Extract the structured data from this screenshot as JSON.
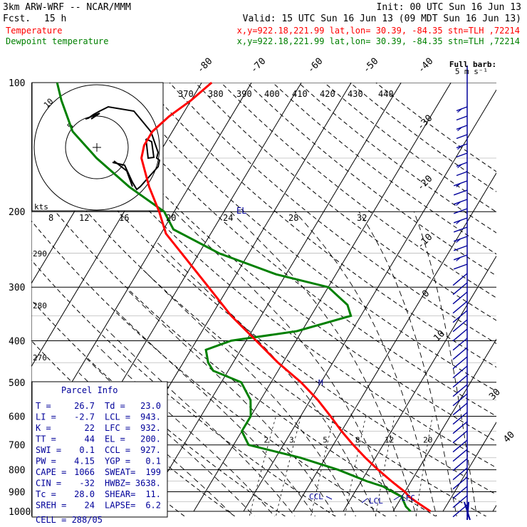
{
  "header": {
    "model": "3km ARW-WRF -- NCAR/MMM",
    "init": "Init: 00 UTC Sun 16 Jun 13",
    "fcst_label": "Fcst.",
    "fcst_value": "15 h",
    "valid": "Valid: 15 UTC Sun 16 Jun 13 (09 MDT Sun 16 Jun 13)",
    "temp_label": "Temperature",
    "temp_info": "x,y=922.18,221.99   lat,lon= 30.39, -84.35  stn=TLH ,72214",
    "dew_label": "Dewpoint temperature",
    "dew_info": "x,y=922.18,221.99   lat,lon= 30.39, -84.35  stn=TLH ,72214"
  },
  "colors": {
    "temperature": "#ff0000",
    "dewpoint": "#008000",
    "background_lines": "#000000",
    "wind_barbs": "#00009a",
    "el_label": "#00009a"
  },
  "barb_legend": {
    "title": "Full barb:",
    "value": "5 m s⁻¹"
  },
  "pressure_labels": [
    "100",
    "200",
    "300",
    "400",
    "500",
    "600",
    "700",
    "800",
    "900",
    "1000"
  ],
  "theta_labels": [
    "370",
    "380",
    "390",
    "400",
    "410",
    "420",
    "430",
    "440"
  ],
  "isotherm_labels": [
    "-80",
    "-70",
    "-60",
    "-50",
    "-40",
    "-30",
    "-20",
    "-10",
    "0",
    "10",
    "30",
    "40"
  ],
  "left_theta_labels": [
    "290",
    "280",
    "270"
  ],
  "mixing_ratio_labels": [
    "2",
    "3",
    "5",
    "8",
    "12",
    "20"
  ],
  "hodograph": {
    "units": "kts",
    "ring_labels": [
      "5",
      "10"
    ],
    "speed_labels": [
      "8",
      "12",
      "16",
      "20",
      "24",
      "28",
      "32"
    ]
  },
  "parcel_levels": {
    "el": "EL",
    "m": "M",
    "ccl": "CCL",
    "lcl": "LCL",
    "lfc": "LFC"
  },
  "parcel_info": {
    "title": "Parcel Info",
    "rows": [
      [
        "T  =",
        "26.7",
        "Td =",
        "23.0"
      ],
      [
        "LI =",
        "-2.7",
        "LCL =",
        "943."
      ],
      [
        "K  =",
        "22",
        "LFC =",
        "932."
      ],
      [
        "TT =",
        "44",
        "EL =",
        "200."
      ],
      [
        "SWI =",
        "0.1",
        "CCL =",
        "927."
      ],
      [
        "PW =",
        "4.15",
        "YGP =",
        "0.1"
      ],
      [
        "CAPE =",
        "1066",
        "SWEAT=",
        "199"
      ],
      [
        "CIN =",
        "-32",
        "HWBZ=",
        "3638."
      ],
      [
        "Tc =",
        "28.0",
        "SHEAR=",
        "11."
      ],
      [
        "SREH =",
        "24",
        "LAPSE=",
        "6.2"
      ]
    ],
    "cell": "CELL = 288/05"
  },
  "chart_data": {
    "type": "line",
    "title": "",
    "xlabel": "",
    "ylabel": "",
    "y_scale": "log",
    "ylim": [
      1000,
      100
    ],
    "grid": true,
    "series": [
      {
        "name": "Temperature",
        "p": [
          1000,
          975,
          950,
          925,
          900,
          875,
          850,
          800,
          750,
          700,
          650,
          600,
          550,
          500,
          450,
          400,
          350,
          300,
          250,
          225,
          200,
          175,
          150,
          140,
          130,
          120,
          110,
          100
        ],
        "t": [
          27.5,
          25.5,
          23.5,
          21.5,
          20.0,
          18.0,
          16.0,
          12.0,
          8.0,
          4.0,
          0.0,
          -4.0,
          -8.5,
          -14.0,
          -21.0,
          -28.0,
          -36.0,
          -44.0,
          -53.5,
          -59.0,
          -63.0,
          -68.0,
          -73.0,
          -74.0,
          -74.0,
          -72.5,
          -70.0,
          -68.0
        ]
      },
      {
        "name": "Dewpoint temperature",
        "p": [
          1000,
          975,
          950,
          925,
          900,
          875,
          850,
          800,
          750,
          700,
          650,
          620,
          600,
          550,
          500,
          470,
          450,
          420,
          400,
          380,
          350,
          330,
          300,
          280,
          250,
          220,
          200,
          175,
          150,
          130,
          110,
          100
        ],
        "t": [
          23.5,
          22.0,
          21.0,
          20.0,
          17.5,
          15.0,
          11.0,
          4.0,
          -5.0,
          -17.0,
          -20.0,
          -20.0,
          -20.0,
          -22.0,
          -26.0,
          -33.0,
          -35.0,
          -37.0,
          -33.0,
          -21.0,
          -12.0,
          -14.0,
          -20.0,
          -32.0,
          -46.0,
          -58.0,
          -62.0,
          -72.0,
          -82.0,
          -90.0,
          -96.0,
          -99.0
        ]
      }
    ]
  }
}
